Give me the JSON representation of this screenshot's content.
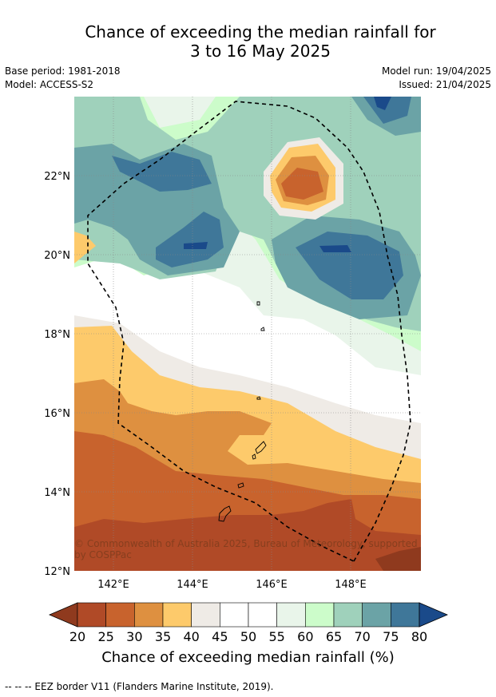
{
  "title_line1": "Chance of exceeding the median rainfall for",
  "title_line2": "3 to 16 May 2025",
  "base_period": "Base period: 1981-2018",
  "model": "Model: ACCESS-S2",
  "model_run": "Model run: 19/04/2025",
  "issued": "Issued: 21/04/2025",
  "map": {
    "lon_labels": [
      "142°E",
      "144°E",
      "146°E",
      "148°E"
    ],
    "lat_labels": [
      "22°N",
      "20°N",
      "18°N",
      "16°N",
      "14°N",
      "12°N"
    ],
    "credit_line1": "© Commonwealth of Australia 2025, Bureau of Meteorology, supported",
    "credit_line2": "by COSPPac"
  },
  "colorbar": {
    "ticks": [
      "20",
      "25",
      "30",
      "35",
      "40",
      "45",
      "50",
      "55",
      "60",
      "65",
      "70",
      "75",
      "80"
    ],
    "colors": [
      "#8f3a1e",
      "#b04a27",
      "#c8632d",
      "#de9040",
      "#fdca6b",
      "#efebe6",
      "#ffffff",
      "#ffffff",
      "#e9f5ea",
      "#ccfcca",
      "#9fd1bb",
      "#6ba3a6",
      "#3f7799",
      "#1a4a8a"
    ],
    "title": "Chance of exceeding median rainfall (%)"
  },
  "footer": "-- -- -- EEZ border V11 (Flanders Marine Institute, 2019)."
}
